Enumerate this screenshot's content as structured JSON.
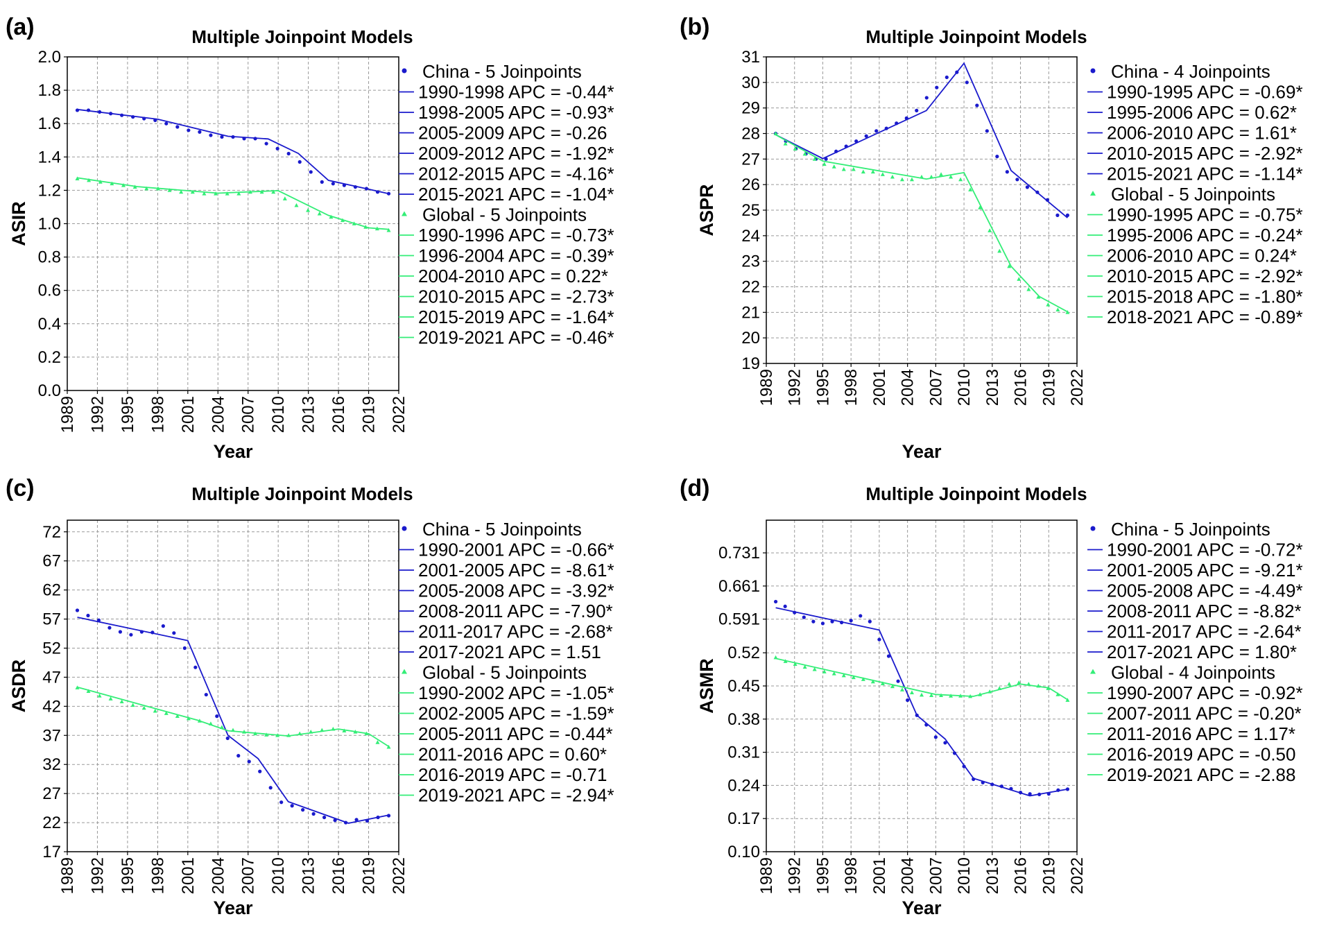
{
  "chart_data": [
    {
      "panel": "(a)",
      "type": "line",
      "title": "Multiple Joinpoint Models",
      "xlabel": "Year",
      "ylabel": "ASIR",
      "xlim": [
        1989,
        2022
      ],
      "ylim": [
        0.0,
        2.0
      ],
      "xticks": [
        "1989",
        "1992",
        "1995",
        "1998",
        "2001",
        "2004",
        "2007",
        "2010",
        "2013",
        "2016",
        "2019",
        "2022"
      ],
      "yticks": [
        "0.0",
        "0.2",
        "0.4",
        "0.6",
        "0.8",
        "1.0",
        "1.2",
        "1.4",
        "1.6",
        "1.8",
        "2.0"
      ],
      "series": [
        {
          "name": "China - 5 Joinpoints",
          "color": "#1a1acc",
          "marker": "circle",
          "observed": [
            1.68,
            1.68,
            1.67,
            1.66,
            1.65,
            1.64,
            1.63,
            1.62,
            1.6,
            1.58,
            1.56,
            1.55,
            1.53,
            1.52,
            1.52,
            1.51,
            1.51,
            1.48,
            1.45,
            1.42,
            1.37,
            1.31,
            1.25,
            1.24,
            1.23,
            1.22,
            1.21,
            1.19,
            1.18
          ],
          "segments": [
            "1990-1998 APC = -0.44*",
            "1998-2005 APC = -0.93*",
            "2005-2009 APC = -0.26",
            "2009-2012 APC = -1.92*",
            "2012-2015 APC = -4.16*",
            "2015-2021 APC = -1.04*"
          ],
          "fit_x": [
            1990,
            1998,
            2005,
            2009,
            2012,
            2015,
            2021
          ],
          "fit_y": [
            1.685,
            1.626,
            1.524,
            1.508,
            1.421,
            1.26,
            1.18
          ]
        },
        {
          "name": "Global - 5 Joinpoints",
          "color": "#33ee77",
          "marker": "triangle",
          "observed": [
            1.27,
            1.26,
            1.25,
            1.24,
            1.23,
            1.22,
            1.21,
            1.21,
            1.2,
            1.19,
            1.19,
            1.18,
            1.18,
            1.18,
            1.18,
            1.19,
            1.19,
            1.19,
            1.15,
            1.11,
            1.08,
            1.06,
            1.04,
            1.02,
            1.0,
            0.98,
            0.97,
            0.96
          ],
          "segments": [
            "1990-1996 APC = -0.73*",
            "1996-2004 APC = -0.39*",
            "2004-2010 APC = 0.22*",
            "2010-2015 APC = -2.73*",
            "2015-2019 APC = -1.64*",
            "2019-2021 APC = -0.46*"
          ],
          "fit_x": [
            1990,
            1996,
            2004,
            2010,
            2015,
            2019,
            2021
          ],
          "fit_y": [
            1.275,
            1.222,
            1.183,
            1.198,
            1.05,
            0.975,
            0.966
          ]
        }
      ]
    },
    {
      "panel": "(b)",
      "type": "line",
      "title": "Multiple Joinpoint Models",
      "xlabel": "Year",
      "ylabel": "ASPR",
      "xlim": [
        1989,
        2022
      ],
      "ylim": [
        19,
        31
      ],
      "xticks": [
        "1989",
        "1992",
        "1995",
        "1998",
        "2001",
        "2004",
        "2007",
        "2010",
        "2013",
        "2016",
        "2019",
        "2022"
      ],
      "yticks": [
        "19",
        "20",
        "21",
        "22",
        "23",
        "24",
        "25",
        "26",
        "27",
        "28",
        "29",
        "30",
        "31"
      ],
      "series": [
        {
          "name": "China - 4 Joinpoints",
          "color": "#1a1acc",
          "marker": "circle",
          "observed": [
            28.0,
            27.7,
            27.4,
            27.2,
            27.0,
            27.0,
            27.3,
            27.5,
            27.7,
            27.9,
            28.1,
            28.2,
            28.4,
            28.6,
            28.9,
            29.4,
            29.8,
            30.2,
            30.4,
            30.0,
            29.1,
            28.1,
            27.1,
            26.5,
            26.2,
            25.9,
            25.7,
            25.4,
            24.8,
            24.8
          ],
          "segments": [
            "1990-1995 APC = -0.69*",
            "1995-2006 APC = 0.62*",
            "2006-2010 APC = 1.61*",
            "2010-2015 APC = -2.92*",
            "2015-2021 APC = -1.14*"
          ],
          "fit_x": [
            1990,
            1995,
            2006,
            2010,
            2015,
            2021
          ],
          "fit_y": [
            27.95,
            27.02,
            28.9,
            30.75,
            26.55,
            24.7
          ]
        },
        {
          "name": "Global - 5 Joinpoints",
          "color": "#33ee77",
          "marker": "triangle",
          "observed": [
            28.0,
            27.6,
            27.4,
            27.2,
            27.0,
            26.8,
            26.7,
            26.6,
            26.6,
            26.5,
            26.5,
            26.4,
            26.3,
            26.2,
            26.2,
            26.3,
            26.3,
            26.4,
            26.3,
            26.2,
            25.8,
            25.1,
            24.2,
            23.4,
            22.8,
            22.3,
            21.9,
            21.6,
            21.3,
            21.1,
            21.0
          ],
          "segments": [
            "1990-1995 APC = -0.75*",
            "1995-2006 APC = -0.24*",
            "2006-2010 APC = 0.24*",
            "2010-2015 APC = -2.92*",
            "2015-2018 APC = -1.80*",
            "2018-2021 APC = -0.89*"
          ],
          "fit_x": [
            1990,
            1995,
            2006,
            2010,
            2015,
            2018,
            2021
          ],
          "fit_y": [
            27.95,
            26.92,
            26.22,
            26.47,
            22.8,
            21.62,
            21.02
          ]
        }
      ]
    },
    {
      "panel": "(c)",
      "type": "line",
      "title": "Multiple Joinpoint Models",
      "xlabel": "Year",
      "ylabel": "ASDR",
      "xlim": [
        1989,
        2022
      ],
      "ylim": [
        17,
        74
      ],
      "xticks": [
        "1989",
        "1992",
        "1995",
        "1998",
        "2001",
        "2004",
        "2007",
        "2010",
        "2013",
        "2016",
        "2019",
        "2022"
      ],
      "yticks": [
        "17",
        "22",
        "27",
        "32",
        "37",
        "42",
        "47",
        "52",
        "57",
        "62",
        "67",
        "72"
      ],
      "series": [
        {
          "name": "China - 5 Joinpoints",
          "color": "#1a1acc",
          "marker": "circle",
          "observed": [
            58.5,
            57.6,
            56.8,
            55.5,
            54.8,
            54.3,
            54.8,
            54.7,
            55.8,
            54.6,
            52.0,
            48.7,
            44.0,
            40.3,
            36.5,
            33.5,
            32.5,
            30.8,
            28.0,
            25.5,
            24.9,
            24.2,
            23.5,
            22.9,
            22.4,
            22.0,
            22.5,
            22.3,
            22.9,
            23.2
          ],
          "segments": [
            "1990-2001 APC = -0.66*",
            "2001-2005 APC = -8.61*",
            "2005-2008 APC = -3.92*",
            "2008-2011 APC = -7.90*",
            "2011-2017 APC = -2.68*",
            "2017-2021 APC = 1.51"
          ],
          "fit_x": [
            1990,
            2001,
            2005,
            2008,
            2011,
            2017,
            2021
          ],
          "fit_y": [
            57.3,
            53.3,
            37.0,
            33.0,
            25.6,
            21.9,
            23.3
          ]
        },
        {
          "name": "Global - 5 Joinpoints",
          "color": "#33ee77",
          "marker": "triangle",
          "observed": [
            45.2,
            44.6,
            43.8,
            43.3,
            42.8,
            42.2,
            41.7,
            41.2,
            40.8,
            40.3,
            39.9,
            39.5,
            39.0,
            38.4,
            37.9,
            37.6,
            37.3,
            37.1,
            37.0,
            37.0,
            37.3,
            37.6,
            37.9,
            38.1,
            37.8,
            37.6,
            37.3,
            35.8,
            35.0
          ],
          "segments": [
            "1990-2002 APC = -1.05*",
            "2002-2005 APC = -1.59*",
            "2005-2011 APC = -0.44*",
            "2011-2016 APC = 0.60*",
            "2016-2019 APC = -0.71",
            "2019-2021 APC = -2.94*"
          ],
          "fit_x": [
            1990,
            2002,
            2005,
            2011,
            2016,
            2019,
            2021
          ],
          "fit_y": [
            45.3,
            39.6,
            37.8,
            36.9,
            38.1,
            37.3,
            35.1
          ]
        }
      ]
    },
    {
      "panel": "(d)",
      "type": "line",
      "title": "Multiple Joinpoint Models",
      "xlabel": "Year",
      "ylabel": "ASMR",
      "xlim": [
        1989,
        2022
      ],
      "ylim": [
        0.1,
        0.8
      ],
      "xticks": [
        "1989",
        "1992",
        "1995",
        "1998",
        "2001",
        "2004",
        "2007",
        "2010",
        "2013",
        "2016",
        "2019",
        "2022"
      ],
      "yticks": [
        "0.10",
        "0.17",
        "0.24",
        "0.31",
        "0.38",
        "0.45",
        "0.52",
        "0.591",
        "0.661",
        "0.731"
      ],
      "series": [
        {
          "name": "China - 5 Joinpoints",
          "color": "#1a1acc",
          "marker": "circle",
          "observed": [
            0.628,
            0.618,
            0.605,
            0.595,
            0.586,
            0.582,
            0.586,
            0.584,
            0.588,
            0.598,
            0.586,
            0.548,
            0.513,
            0.46,
            0.42,
            0.388,
            0.368,
            0.342,
            0.33,
            0.308,
            0.28,
            0.253,
            0.246,
            0.242,
            0.238,
            0.233,
            0.225,
            0.222,
            0.221,
            0.222,
            0.23,
            0.232
          ],
          "segments": [
            "1990-2001 APC = -0.72*",
            "2001-2005 APC = -9.21*",
            "2005-2008 APC = -4.49*",
            "2008-2011 APC = -8.82*",
            "2011-2017 APC = -2.64*",
            "2017-2021 APC = 1.80*"
          ],
          "fit_x": [
            1990,
            2001,
            2005,
            2008,
            2011,
            2017,
            2021
          ],
          "fit_y": [
            0.615,
            0.568,
            0.388,
            0.338,
            0.255,
            0.218,
            0.232
          ]
        },
        {
          "name": "Global - 4 Joinpoints",
          "color": "#33ee77",
          "marker": "triangle",
          "observed": [
            0.51,
            0.502,
            0.496,
            0.49,
            0.485,
            0.48,
            0.476,
            0.472,
            0.468,
            0.464,
            0.459,
            0.455,
            0.449,
            0.442,
            0.436,
            0.431,
            0.43,
            0.43,
            0.429,
            0.429,
            0.428,
            0.432,
            0.438,
            0.445,
            0.454,
            0.457,
            0.454,
            0.45,
            0.445,
            0.432,
            0.42
          ],
          "segments": [
            "1990-2007 APC = -0.92*",
            "2007-2011 APC = -0.20*",
            "2011-2016 APC = 1.17*",
            "2016-2019 APC = -0.50",
            "2019-2021 APC = -2.88"
          ],
          "fit_x": [
            1990,
            2007,
            2011,
            2016,
            2019,
            2021
          ],
          "fit_y": [
            0.508,
            0.432,
            0.428,
            0.454,
            0.446,
            0.421
          ]
        }
      ]
    }
  ]
}
